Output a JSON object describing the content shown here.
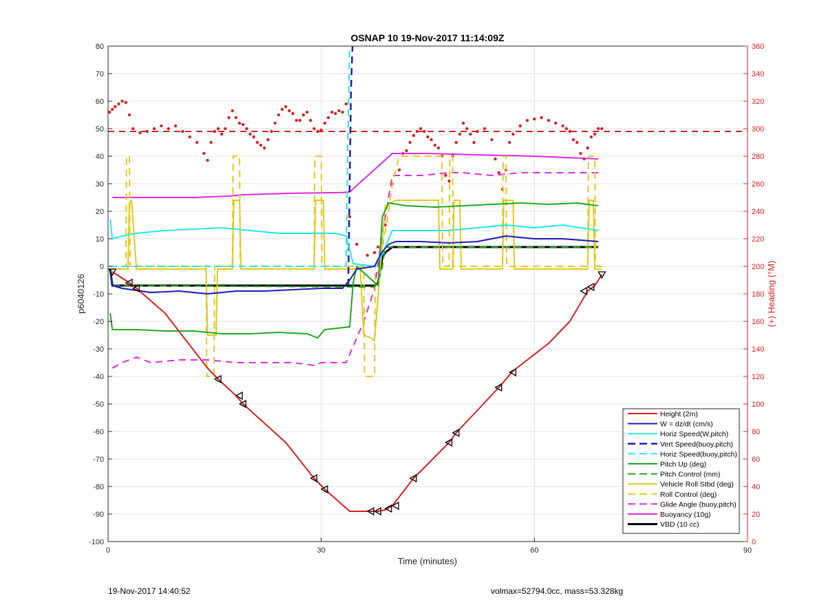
{
  "chart_data": {
    "type": "line",
    "title": "OSNAP 10 19-Nov-2017 11:14:09Z",
    "xlabel": "Time (minutes)",
    "ylabel": "p6040126",
    "y2label": "(+) Heading (°M)",
    "xlim": [
      0,
      90
    ],
    "ylim": [
      -100,
      80
    ],
    "y2lim": [
      0,
      360
    ],
    "xticks": [
      0,
      30,
      60,
      90
    ],
    "yticks": [
      -100,
      -90,
      -80,
      -70,
      -60,
      -50,
      -40,
      -30,
      -20,
      -10,
      0,
      10,
      20,
      30,
      40,
      50,
      60,
      70,
      80
    ],
    "y2ticks": [
      0,
      20,
      40,
      60,
      80,
      100,
      120,
      140,
      160,
      180,
      200,
      220,
      240,
      260,
      280,
      300,
      320,
      340,
      360
    ],
    "grid": true,
    "legend_position": "bottom-right",
    "colors": {
      "heading_axis": "#d42020"
    },
    "series": [
      {
        "name": "Height (2m)",
        "color": "#d42020",
        "style": "solid",
        "width": 2,
        "x": [
          0.6,
          3.0,
          4.0,
          8.0,
          14.0,
          15.5,
          18.0,
          19.0,
          25.0,
          29.0,
          30.5,
          34.0,
          38.0,
          39.0,
          40.0,
          43.0,
          48.0,
          49.0,
          55.0,
          57.0,
          62.0,
          65.0,
          67.5,
          68.5,
          69.5
        ],
        "y": [
          -2,
          -6,
          -8,
          -17,
          -37,
          -41,
          -47,
          -50,
          -64,
          -77,
          -81,
          -89,
          -89,
          -88.5,
          -87,
          -77,
          -64,
          -60.5,
          -44,
          -38,
          -28,
          -20,
          -9,
          -7,
          -3
        ]
      },
      {
        "name": "W = dz/dt (cm/s)",
        "color": "#1a1ab8",
        "style": "solid",
        "width": 2,
        "x": [
          0.3,
          0.6,
          2,
          6,
          10,
          14,
          18,
          22,
          26,
          30,
          33.0,
          34.0,
          35.0,
          37.5,
          38.5,
          39.5,
          40.5,
          44,
          48,
          52,
          56,
          60,
          64,
          69
        ],
        "y": [
          -1,
          -7,
          -8,
          -9.5,
          -9,
          -10,
          -9,
          -9,
          -8.5,
          -8,
          -8,
          -5,
          -1,
          0,
          5,
          8,
          9,
          9,
          8.5,
          9,
          11,
          10,
          10,
          9
        ]
      },
      {
        "name": "Horiz Speed(W,pitch)",
        "color": "#22e8e8",
        "style": "solid",
        "width": 2,
        "x": [
          0.3,
          0.6,
          2,
          4,
          8,
          12,
          16,
          20,
          24,
          28,
          32,
          33.5,
          34.5,
          37.5,
          38.5,
          40,
          44,
          48,
          52,
          56,
          60,
          64,
          69
        ],
        "y": [
          17,
          10,
          11,
          12,
          13,
          13.5,
          14,
          13,
          12,
          12,
          12,
          11,
          1,
          0,
          4,
          13,
          13,
          13,
          14,
          15,
          14,
          15,
          13
        ]
      },
      {
        "name": "Vert Speed(buoy,pitch)",
        "color": "#1a1ab8",
        "style": "dashed",
        "width": 2.5,
        "x": [
          33.8,
          34.0,
          34.2,
          34.4
        ],
        "y": [
          -7,
          30,
          65,
          80
        ]
      },
      {
        "name": "Horiz Speed(buoy,pitch)",
        "color": "#22e8e8",
        "style": "dashed",
        "width": 2,
        "x": [
          0.3,
          33.5,
          33.7,
          34.0
        ],
        "y": [
          0,
          0,
          40,
          80
        ]
      },
      {
        "name": "Pitch Up (deg)",
        "color": "#1ea61e",
        "style": "solid",
        "width": 2,
        "x": [
          0.3,
          0.6,
          4,
          8,
          12,
          16,
          20,
          24,
          28,
          29.5,
          30.5,
          34.0,
          34.5,
          35.0,
          38.0,
          38.6,
          39.5,
          42,
          46,
          50,
          54,
          58,
          62,
          66,
          69
        ],
        "y": [
          -17,
          -23,
          -23,
          -23.5,
          -23.5,
          -24.5,
          -24.5,
          -24,
          -24.5,
          -26,
          -23,
          -22,
          -6,
          0,
          -7,
          18,
          23,
          22,
          21.5,
          22,
          22.5,
          23,
          22.5,
          23,
          22
        ]
      },
      {
        "name": "Pitch Control (mm)",
        "color": "#1ea61e",
        "style": "dashed",
        "width": 2,
        "x": [
          0.3,
          0.6,
          34.0,
          37.5,
          38.5,
          39.0,
          69
        ],
        "y": [
          -3,
          -7,
          -7.5,
          -7.5,
          -2,
          7,
          7
        ]
      },
      {
        "name": "Vehicle Roll Stbd (deg)",
        "color": "#e2c81c",
        "style": "solid",
        "width": 2,
        "x": [
          0.3,
          2.8,
          3.0,
          3.3,
          4.0,
          13.8,
          14.0,
          14.4,
          15.2,
          15.4,
          17.5,
          17.7,
          18.5,
          18.7,
          29.0,
          29.2,
          30.3,
          30.5,
          33.5,
          35.5,
          36.0,
          37.0,
          37.5,
          38.5,
          39.0,
          40.5,
          42.0,
          46.5,
          46.7,
          48.0,
          48.5,
          48.7,
          49.5,
          49.7,
          55.5,
          55.7,
          57.0,
          57.2,
          67.5,
          67.7,
          68.3,
          68.5,
          69.5
        ],
        "y": [
          -1,
          -1,
          23,
          24,
          -1,
          -1,
          -25,
          -25,
          -25,
          -1,
          -1,
          24,
          24,
          -1,
          -1,
          24,
          24,
          -1,
          -1,
          -1,
          -25,
          -26,
          -27,
          5,
          22,
          24,
          24,
          24,
          -1,
          -1,
          -1,
          24,
          24,
          -1,
          -1,
          24,
          24,
          -1,
          -1,
          24,
          24,
          -1,
          -1
        ]
      },
      {
        "name": "Roll Control (deg)",
        "color": "#e2c81c",
        "style": "dashed",
        "width": 2,
        "x": [
          0.3,
          2.5,
          2.6,
          3.0,
          3.1,
          3.5,
          3.6,
          13.8,
          13.9,
          14.9,
          15.0,
          17.5,
          17.6,
          18.5,
          18.6,
          29.0,
          29.1,
          30.0,
          30.1,
          35.0,
          35.5,
          36.0,
          36.1,
          37.5,
          37.6,
          38.5,
          39.5,
          40.0,
          41.0,
          43.0,
          47.0,
          47.1,
          48.0,
          48.1,
          48.5,
          48.6,
          55.5,
          55.6,
          56.0,
          56.1,
          67.5,
          67.6,
          68.5,
          68.6,
          69.5
        ],
        "y": [
          0,
          0,
          40,
          40,
          0,
          0,
          0,
          0,
          -40,
          -40,
          0,
          0,
          40,
          40,
          0,
          0,
          40,
          40,
          0,
          0,
          0,
          0,
          -40,
          -40,
          0,
          5,
          20,
          30,
          40,
          40,
          40,
          0,
          0,
          40,
          40,
          0,
          0,
          40,
          40,
          0,
          0,
          40,
          40,
          0,
          0
        ]
      },
      {
        "name": "Glide Angle (buoy,pitch)",
        "color": "#e028e0",
        "style": "dashed",
        "width": 2,
        "x": [
          0.6,
          2,
          4,
          6,
          10,
          14,
          18,
          22,
          26,
          29,
          30,
          32,
          33.5,
          36.0,
          37.5,
          38.5,
          40,
          44,
          48,
          50,
          54,
          58,
          62,
          66,
          69
        ],
        "y": [
          -37,
          -35,
          -33,
          -35,
          -34,
          -34,
          -35,
          -35,
          -35,
          -36,
          -35,
          -35,
          -35,
          -20,
          -8,
          10,
          33,
          33,
          34,
          34,
          33,
          34,
          34,
          34,
          34
        ]
      },
      {
        "name": "Buoyancy (10g)",
        "color": "#e028e0",
        "style": "solid",
        "width": 2,
        "x": [
          0.6,
          12.0,
          17.0,
          19.0,
          25.0,
          33.0,
          34.0,
          40.0,
          45.0,
          52.0,
          60.0,
          69.0
        ],
        "y": [
          25,
          25,
          25.5,
          26,
          26.5,
          26.8,
          27,
          41,
          41,
          40.5,
          40,
          39
        ]
      },
      {
        "name": "VBD (10 cc)",
        "color": "#000000",
        "style": "solid",
        "width": 3,
        "x": [
          0.3,
          0.6,
          4.0,
          33.0,
          37.5,
          38.0,
          38.6,
          39.0,
          40.0,
          69.0
        ],
        "y": [
          -1,
          -7,
          -7,
          -7,
          -7,
          -6,
          3,
          5,
          7,
          7
        ]
      }
    ],
    "heading_series": {
      "color": "#d42020",
      "axis": "right",
      "values_points": [
        [
          0.2,
          312
        ],
        [
          0.6,
          314
        ],
        [
          1.0,
          316
        ],
        [
          1.5,
          318
        ],
        [
          2.0,
          320
        ],
        [
          2.5,
          319
        ],
        [
          3.0,
          310
        ],
        [
          3.5,
          300
        ],
        [
          4.5,
          297
        ],
        [
          5.5,
          298
        ],
        [
          6.5,
          300
        ],
        [
          7.5,
          302
        ],
        [
          8.5,
          300
        ],
        [
          9.5,
          302
        ],
        [
          10.5,
          298
        ],
        [
          11.5,
          294
        ],
        [
          12.5,
          290
        ],
        [
          13.5,
          282
        ],
        [
          14.0,
          277
        ],
        [
          14.5,
          290
        ],
        [
          15.0,
          298
        ],
        [
          15.5,
          300
        ],
        [
          16.0,
          296
        ],
        [
          16.5,
          300
        ],
        [
          17.0,
          308
        ],
        [
          17.5,
          313
        ],
        [
          18.0,
          308
        ],
        [
          18.5,
          304
        ],
        [
          19.0,
          303
        ],
        [
          19.5,
          300
        ],
        [
          20.0,
          296
        ],
        [
          20.5,
          294
        ],
        [
          21.0,
          290
        ],
        [
          21.5,
          288
        ],
        [
          22.0,
          286
        ],
        [
          22.5,
          292
        ],
        [
          23.0,
          298
        ],
        [
          23.5,
          304
        ],
        [
          24.0,
          310
        ],
        [
          24.5,
          314
        ],
        [
          25.0,
          316
        ],
        [
          25.5,
          313
        ],
        [
          26.0,
          311
        ],
        [
          26.5,
          306
        ],
        [
          27.0,
          306
        ],
        [
          27.5,
          310
        ],
        [
          28.0,
          312
        ],
        [
          28.5,
          306
        ],
        [
          29.0,
          300
        ],
        [
          29.5,
          298
        ],
        [
          30.0,
          299
        ],
        [
          30.5,
          304
        ],
        [
          31.0,
          308
        ],
        [
          31.5,
          312
        ],
        [
          32.0,
          311
        ],
        [
          32.5,
          313
        ],
        [
          33.0,
          312
        ],
        [
          33.5,
          318
        ],
        [
          34.0,
          236
        ],
        [
          35.0,
          216
        ],
        [
          36.5,
          208
        ],
        [
          37.5,
          210
        ],
        [
          38.0,
          214
        ],
        [
          38.5,
          220
        ],
        [
          39.0,
          230
        ],
        [
          40.0,
          260
        ],
        [
          41.0,
          270
        ],
        [
          41.5,
          282
        ],
        [
          42.0,
          284
        ],
        [
          42.5,
          290
        ],
        [
          43.0,
          295
        ],
        [
          43.5,
          298
        ],
        [
          44.0,
          300
        ],
        [
          44.5,
          298
        ],
        [
          45.0,
          294
        ],
        [
          45.5,
          292
        ],
        [
          46.0,
          288
        ],
        [
          46.5,
          286
        ],
        [
          47.0,
          280
        ],
        [
          47.5,
          266
        ],
        [
          48.0,
          262
        ],
        [
          48.5,
          280
        ],
        [
          49.0,
          290
        ],
        [
          49.5,
          296
        ],
        [
          50.0,
          304
        ],
        [
          50.5,
          300
        ],
        [
          51.0,
          296
        ],
        [
          51.5,
          290
        ],
        [
          52.0,
          298
        ],
        [
          53.0,
          300
        ],
        [
          54.0,
          292
        ],
        [
          54.5,
          278
        ],
        [
          55.0,
          268
        ],
        [
          55.5,
          256
        ],
        [
          56.0,
          270
        ],
        [
          56.5,
          290
        ],
        [
          57.0,
          296
        ],
        [
          58.0,
          302
        ],
        [
          59.0,
          306
        ],
        [
          60.0,
          307
        ],
        [
          61.0,
          308
        ],
        [
          62.0,
          306
        ],
        [
          63.0,
          304
        ],
        [
          64.0,
          302
        ],
        [
          64.5,
          300
        ],
        [
          65.0,
          298
        ],
        [
          65.5,
          292
        ],
        [
          66.0,
          290
        ],
        [
          66.5,
          282
        ],
        [
          67.0,
          278
        ],
        [
          67.5,
          286
        ],
        [
          68.0,
          294
        ],
        [
          68.5,
          296
        ],
        [
          69.0,
          300
        ],
        [
          69.5,
          300
        ]
      ],
      "mean_value": 298,
      "mean_style": "dashed"
    },
    "markers": {
      "triangle_left": [
        [
          3.0,
          -6
        ],
        [
          4.0,
          -8
        ],
        [
          15.5,
          -41
        ],
        [
          18.5,
          -47
        ],
        [
          19.0,
          -50
        ],
        [
          29.0,
          -77
        ],
        [
          30.5,
          -81
        ],
        [
          37.0,
          -89
        ],
        [
          38.0,
          -89
        ],
        [
          39.5,
          -88
        ],
        [
          40.5,
          -87
        ],
        [
          43.0,
          -77
        ],
        [
          48.0,
          -64
        ],
        [
          49.0,
          -60.5
        ],
        [
          55.0,
          -44
        ],
        [
          57.0,
          -38.5
        ],
        [
          67.0,
          -9
        ],
        [
          68.0,
          -7.5
        ]
      ],
      "triangle_down": [
        [
          0.6,
          -2
        ],
        [
          69.5,
          -3
        ]
      ]
    }
  },
  "footer": {
    "timestamp": "19-Nov-2017 14:40:52",
    "summary": "volmax=52794.0cc, mass=53.328kg"
  }
}
